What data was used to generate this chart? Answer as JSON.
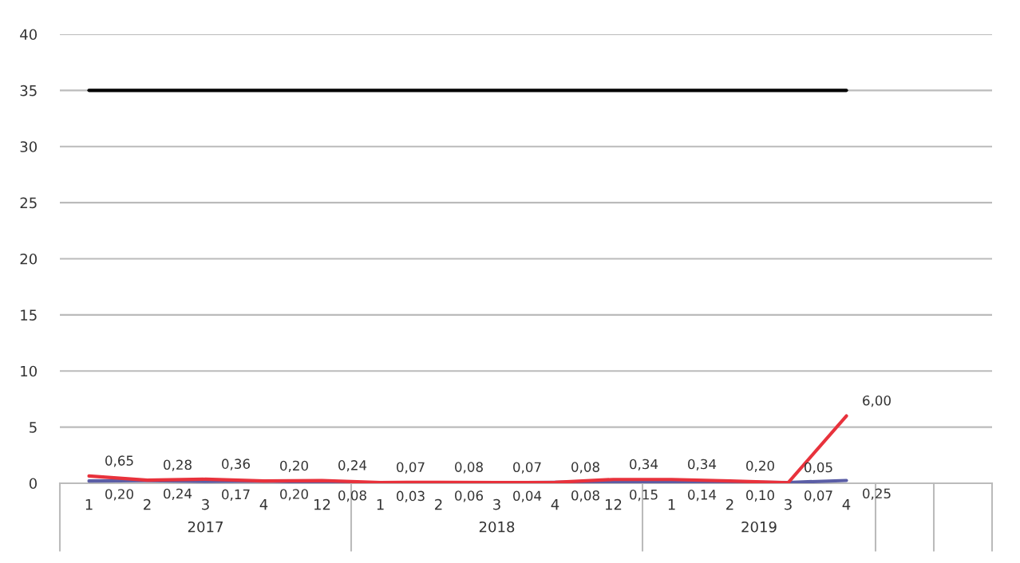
{
  "chart_data": {
    "type": "line",
    "categories": [
      "1",
      "2",
      "3",
      "4",
      "12",
      "1",
      "2",
      "3",
      "4",
      "12",
      "1",
      "2",
      "3",
      "4",
      null,
      null
    ],
    "series": [
      {
        "color": "#000000",
        "values": [
          35,
          35,
          35,
          35,
          35,
          35,
          35,
          35,
          35,
          35,
          35,
          35,
          35,
          35,
          null,
          null
        ]
      },
      {
        "color": "#5b5ea6",
        "values": [
          0.2,
          0.24,
          0.17,
          0.2,
          0.08,
          0.03,
          0.06,
          0.04,
          0.08,
          0.15,
          0.14,
          0.1,
          0.07,
          0.25,
          null,
          null
        ],
        "value_labels": [
          "0,20",
          "0,24",
          "0,17",
          "0,20",
          "0,08",
          "0,03",
          "0,06",
          "0,04",
          "0,08",
          "0,15",
          "0,14",
          "0,10",
          "0,07",
          "0,25",
          null,
          null
        ]
      },
      {
        "color": "#e8323c",
        "values": [
          0.65,
          0.28,
          0.36,
          0.2,
          0.24,
          0.07,
          0.08,
          0.07,
          0.08,
          0.34,
          0.34,
          0.2,
          0.05,
          6.0,
          null,
          null
        ],
        "value_labels": [
          "0,65",
          "0,28",
          "0,36",
          "0,20",
          "0,24",
          "0,07",
          "0,08",
          "0,07",
          "0,08",
          "0,34",
          "0,34",
          "0,20",
          "0,05",
          "6,00",
          null,
          null
        ]
      }
    ],
    "annotations": [
      "2017",
      "2018",
      "2019"
    ],
    "ylim": [
      0,
      40
    ],
    "yticks": [
      0,
      5,
      10,
      15,
      20,
      25,
      30,
      35,
      40
    ],
    "grid": "y",
    "legend": false,
    "marker": "none",
    "line_style": "solid"
  }
}
